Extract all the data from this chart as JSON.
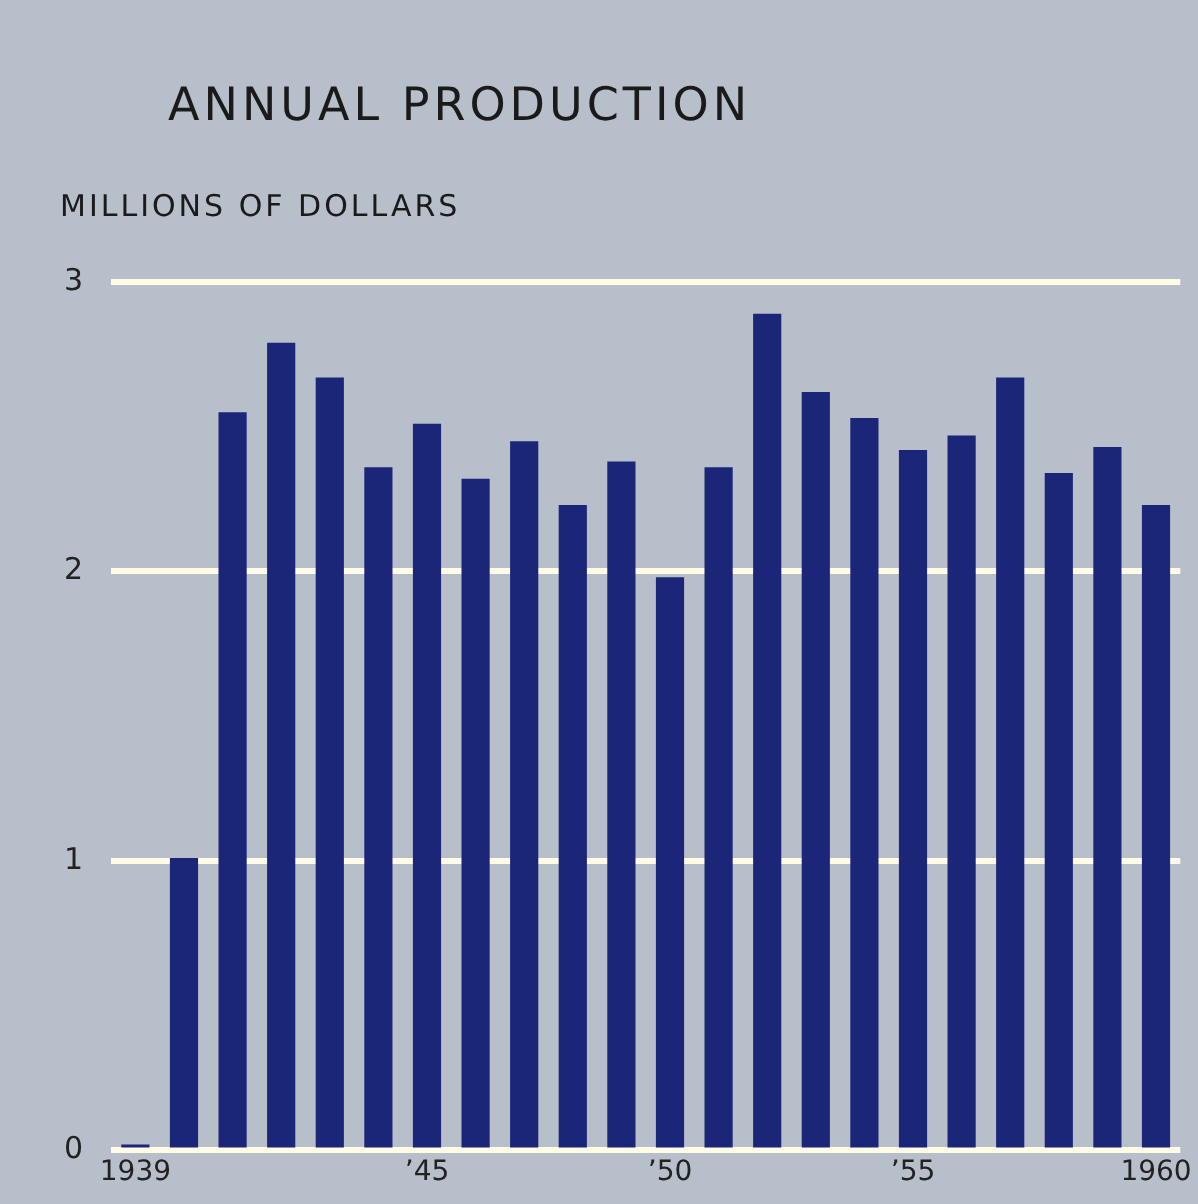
{
  "chart_data": {
    "type": "bar",
    "title": "ANNUAL PRODUCTION",
    "ylabel": "MILLIONS OF DOLLARS",
    "categories": [
      "1939",
      null,
      null,
      null,
      null,
      null,
      "’45",
      null,
      null,
      null,
      null,
      "’50",
      null,
      null,
      null,
      null,
      "’55",
      null,
      null,
      null,
      null,
      "1960"
    ],
    "values": [
      0.02,
      1.01,
      2.55,
      2.79,
      2.67,
      2.36,
      2.51,
      2.32,
      2.45,
      2.23,
      2.38,
      1.98,
      2.36,
      2.89,
      2.62,
      2.53,
      2.42,
      2.47,
      2.67,
      2.34,
      2.43,
      2.23
    ],
    "color": "#1b2679",
    "ylim": [
      0,
      3
    ],
    "yticks": [
      0,
      1,
      2,
      3
    ],
    "grid": "y"
  }
}
